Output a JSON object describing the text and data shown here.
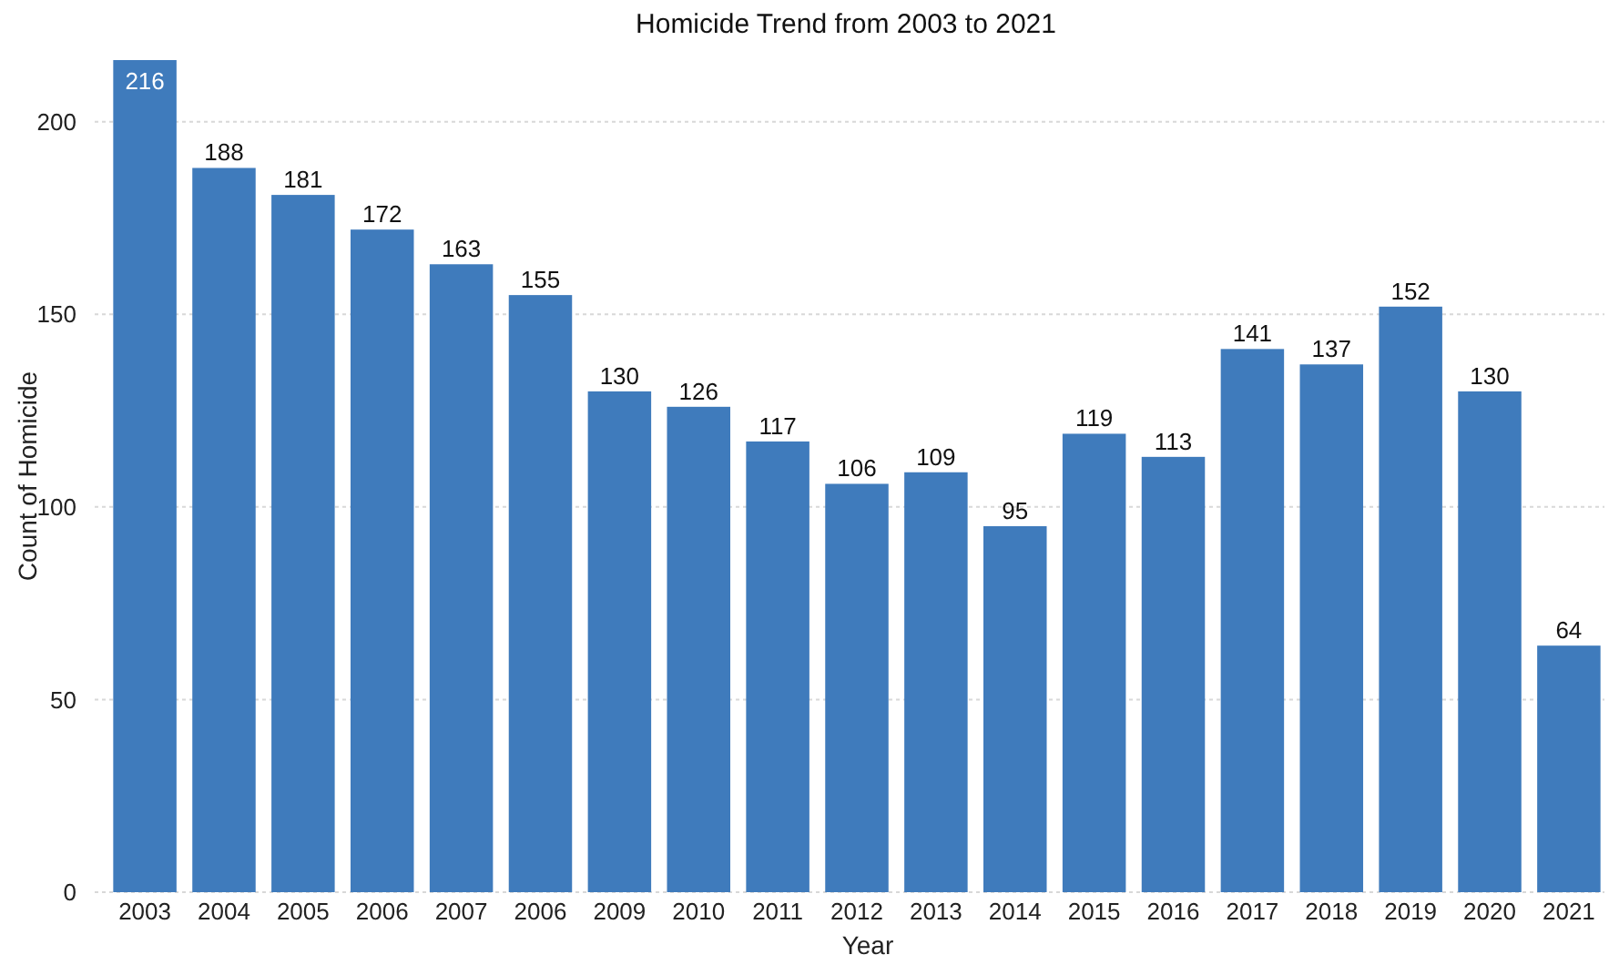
{
  "chart_data": {
    "type": "bar",
    "title": "Homicide Trend from 2003 to 2021",
    "xlabel": "Year",
    "ylabel": "Count of Homicide",
    "categories": [
      "2003",
      "2004",
      "2005",
      "2006",
      "2007",
      "2006",
      "2009",
      "2010",
      "2011",
      "2012",
      "2013",
      "2014",
      "2015",
      "2016",
      "2017",
      "2018",
      "2019",
      "2020",
      "2021"
    ],
    "values": [
      216,
      188,
      181,
      172,
      163,
      155,
      130,
      126,
      117,
      106,
      109,
      95,
      119,
      113,
      141,
      137,
      152,
      130,
      64
    ],
    "color": "#3f7bbc",
    "ylim": [
      0,
      216
    ],
    "yticks": [
      0,
      50,
      100,
      150,
      200
    ],
    "grid": "y",
    "data_labels": true
  }
}
